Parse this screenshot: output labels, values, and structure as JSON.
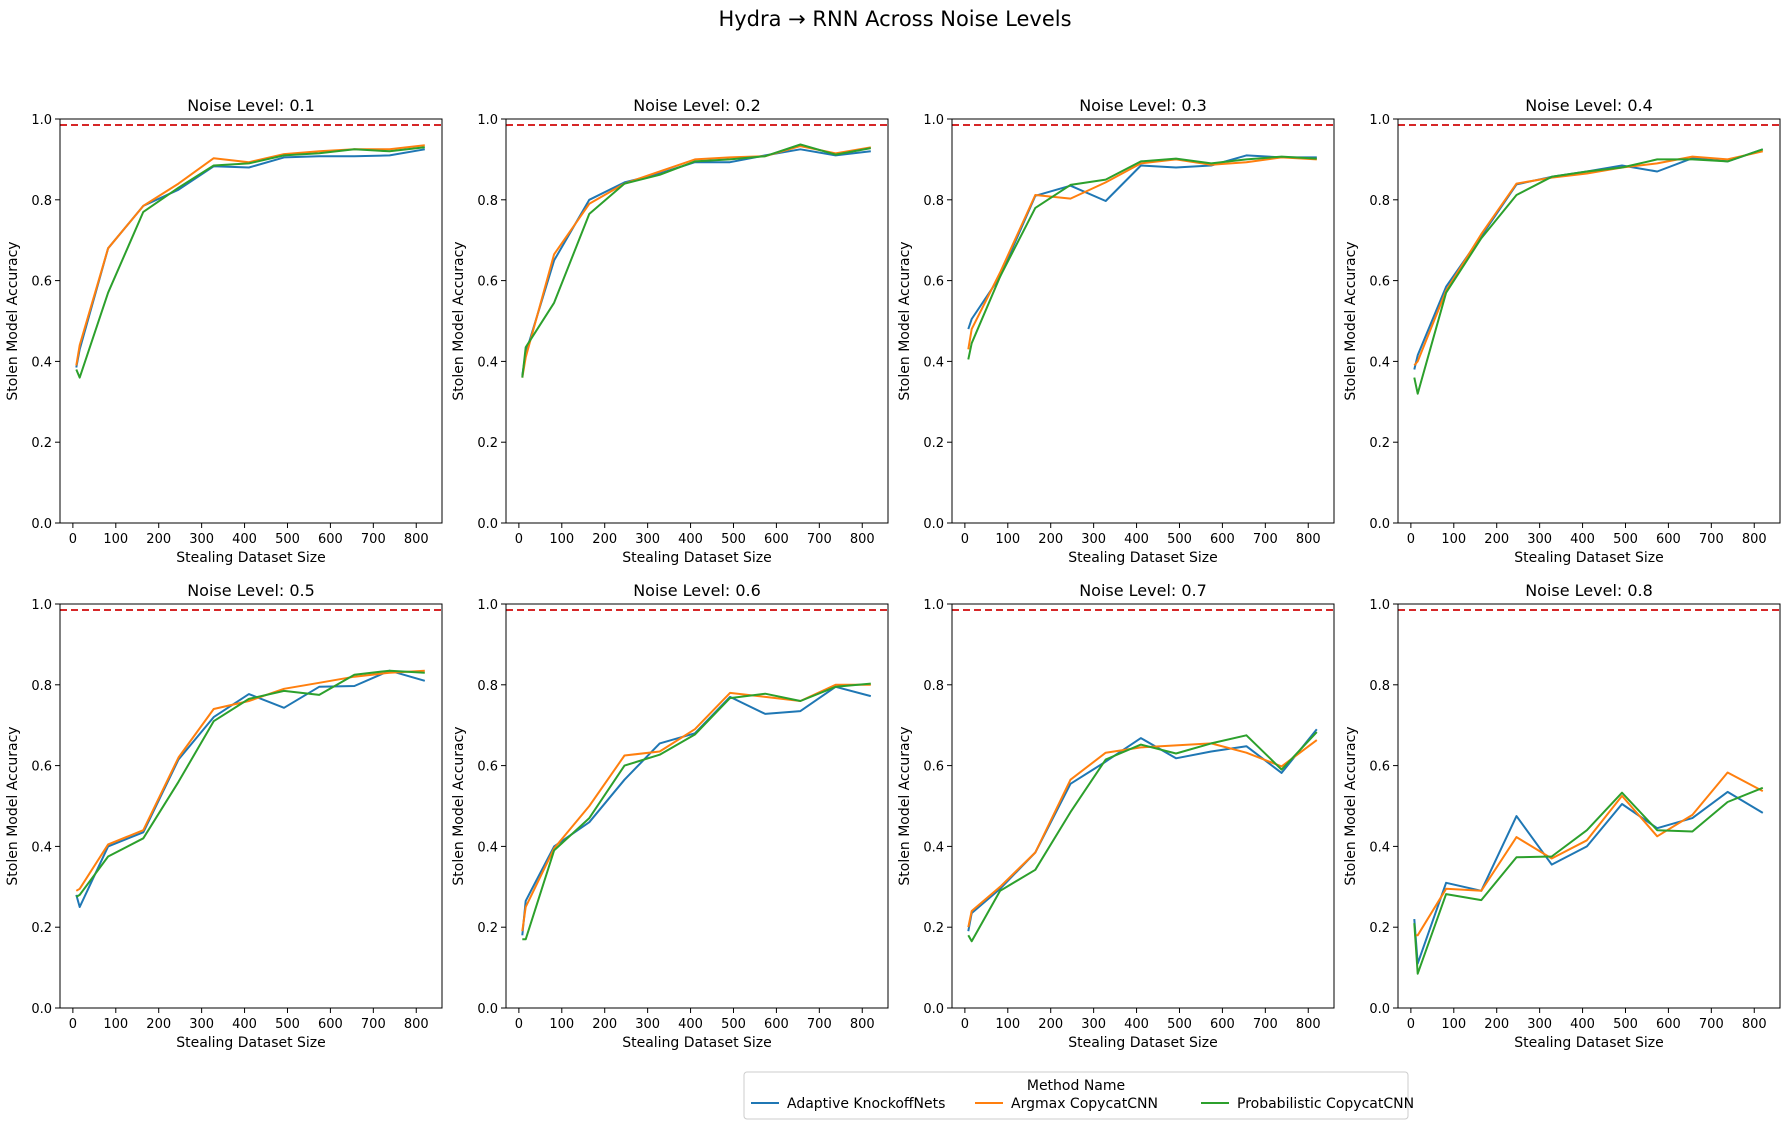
{
  "figure": {
    "suptitle": "Hydra → RNN Across Noise Levels",
    "xlabel": "Stealing Dataset Size",
    "ylabel": "Stolen Model Accuracy",
    "legend_title": "Method Name",
    "legend_placement": "bottom-center",
    "grid": false
  },
  "series_styles": [
    {
      "name": "Adaptive KnockoffNets",
      "color": "#1f77b4"
    },
    {
      "name": "Argmax CopycatCNN",
      "color": "#ff7f0e"
    },
    {
      "name": "Probabilistic CopycatCNN",
      "color": "#2ca02c"
    }
  ],
  "reference_line": {
    "y": 0.985,
    "color": "#d62728",
    "style": "dashed"
  },
  "chart_data": [
    {
      "type": "line",
      "title": "Noise Level: 0.1",
      "xlabel": "Stealing Dataset Size",
      "ylabel": "Stolen Model Accuracy",
      "xlim": [
        -30,
        860
      ],
      "ylim": [
        0,
        1
      ],
      "xticks": [
        0,
        100,
        200,
        300,
        400,
        500,
        600,
        700,
        800
      ],
      "yticks": [
        0.0,
        0.2,
        0.4,
        0.6,
        0.8,
        1.0
      ],
      "x": [
        8,
        16,
        82,
        164,
        246,
        328,
        410,
        492,
        574,
        656,
        738,
        820
      ],
      "series": [
        {
          "name": "Adaptive KnockoffNets",
          "values": [
            0.385,
            0.43,
            0.68,
            0.785,
            0.825,
            0.883,
            0.88,
            0.905,
            0.908,
            0.908,
            0.91,
            0.925
          ]
        },
        {
          "name": "Argmax CopycatCNN",
          "values": [
            0.39,
            0.44,
            0.68,
            0.785,
            0.84,
            0.903,
            0.893,
            0.913,
            0.92,
            0.925,
            0.925,
            0.935
          ]
        },
        {
          "name": "Probabilistic CopycatCNN",
          "values": [
            0.38,
            0.36,
            0.57,
            0.77,
            0.83,
            0.885,
            0.89,
            0.91,
            0.915,
            0.925,
            0.92,
            0.93
          ]
        }
      ]
    },
    {
      "type": "line",
      "title": "Noise Level: 0.2",
      "xlabel": "Stealing Dataset Size",
      "ylabel": "Stolen Model Accuracy",
      "xlim": [
        -30,
        860
      ],
      "ylim": [
        0,
        1
      ],
      "xticks": [
        0,
        100,
        200,
        300,
        400,
        500,
        600,
        700,
        800
      ],
      "yticks": [
        0.0,
        0.2,
        0.4,
        0.6,
        0.8,
        1.0
      ],
      "x": [
        8,
        16,
        82,
        164,
        246,
        328,
        410,
        492,
        574,
        656,
        738,
        820
      ],
      "series": [
        {
          "name": "Adaptive KnockoffNets",
          "values": [
            0.365,
            0.42,
            0.65,
            0.8,
            0.843,
            0.865,
            0.893,
            0.893,
            0.91,
            0.925,
            0.91,
            0.92
          ]
        },
        {
          "name": "Argmax CopycatCNN",
          "values": [
            0.36,
            0.41,
            0.665,
            0.79,
            0.84,
            0.87,
            0.9,
            0.905,
            0.908,
            0.933,
            0.915,
            0.93
          ]
        },
        {
          "name": "Probabilistic CopycatCNN",
          "values": [
            0.36,
            0.435,
            0.545,
            0.765,
            0.84,
            0.862,
            0.895,
            0.9,
            0.908,
            0.937,
            0.912,
            0.928
          ]
        }
      ]
    },
    {
      "type": "line",
      "title": "Noise Level: 0.3",
      "xlabel": "Stealing Dataset Size",
      "ylabel": "Stolen Model Accuracy",
      "xlim": [
        -30,
        860
      ],
      "ylim": [
        0,
        1
      ],
      "xticks": [
        0,
        100,
        200,
        300,
        400,
        500,
        600,
        700,
        800
      ],
      "yticks": [
        0.0,
        0.2,
        0.4,
        0.6,
        0.8,
        1.0
      ],
      "x": [
        8,
        16,
        82,
        164,
        246,
        328,
        410,
        492,
        574,
        656,
        738,
        820
      ],
      "series": [
        {
          "name": "Adaptive KnockoffNets",
          "values": [
            0.48,
            0.505,
            0.61,
            0.81,
            0.835,
            0.797,
            0.885,
            0.88,
            0.885,
            0.91,
            0.905,
            0.905
          ]
        },
        {
          "name": "Argmax CopycatCNN",
          "values": [
            0.43,
            0.48,
            0.62,
            0.812,
            0.803,
            0.843,
            0.89,
            0.9,
            0.887,
            0.893,
            0.905,
            0.9
          ]
        },
        {
          "name": "Probabilistic CopycatCNN",
          "values": [
            0.405,
            0.445,
            0.61,
            0.78,
            0.837,
            0.85,
            0.895,
            0.902,
            0.89,
            0.9,
            0.907,
            0.902
          ]
        }
      ]
    },
    {
      "type": "line",
      "title": "Noise Level: 0.4",
      "xlabel": "Stealing Dataset Size",
      "ylabel": "Stolen Model Accuracy",
      "xlim": [
        -30,
        860
      ],
      "ylim": [
        0,
        1
      ],
      "xticks": [
        0,
        100,
        200,
        300,
        400,
        500,
        600,
        700,
        800
      ],
      "yticks": [
        0.0,
        0.2,
        0.4,
        0.6,
        0.8,
        1.0
      ],
      "x": [
        8,
        16,
        82,
        164,
        246,
        328,
        410,
        492,
        574,
        656,
        738,
        820
      ],
      "series": [
        {
          "name": "Adaptive KnockoffNets",
          "values": [
            0.38,
            0.415,
            0.585,
            0.71,
            0.838,
            0.857,
            0.87,
            0.885,
            0.87,
            0.903,
            0.895,
            0.925
          ]
        },
        {
          "name": "Argmax CopycatCNN",
          "values": [
            0.39,
            0.4,
            0.575,
            0.715,
            0.84,
            0.855,
            0.865,
            0.88,
            0.89,
            0.907,
            0.9,
            0.92
          ]
        },
        {
          "name": "Probabilistic CopycatCNN",
          "values": [
            0.36,
            0.32,
            0.57,
            0.705,
            0.812,
            0.857,
            0.87,
            0.88,
            0.9,
            0.9,
            0.895,
            0.925
          ]
        }
      ]
    },
    {
      "type": "line",
      "title": "Noise Level: 0.5",
      "xlabel": "Stealing Dataset Size",
      "ylabel": "Stolen Model Accuracy",
      "xlim": [
        -30,
        860
      ],
      "ylim": [
        0,
        1
      ],
      "xticks": [
        0,
        100,
        200,
        300,
        400,
        500,
        600,
        700,
        800
      ],
      "yticks": [
        0.0,
        0.2,
        0.4,
        0.6,
        0.8,
        1.0
      ],
      "x": [
        8,
        16,
        82,
        164,
        246,
        328,
        410,
        492,
        574,
        656,
        738,
        820
      ],
      "series": [
        {
          "name": "Adaptive KnockoffNets",
          "values": [
            0.28,
            0.25,
            0.4,
            0.435,
            0.615,
            0.72,
            0.777,
            0.743,
            0.795,
            0.797,
            0.835,
            0.81
          ]
        },
        {
          "name": "Argmax CopycatCNN",
          "values": [
            0.29,
            0.295,
            0.405,
            0.44,
            0.62,
            0.74,
            0.76,
            0.79,
            0.805,
            0.82,
            0.83,
            0.835
          ]
        },
        {
          "name": "Probabilistic CopycatCNN",
          "values": [
            0.275,
            0.28,
            0.375,
            0.42,
            0.56,
            0.71,
            0.765,
            0.785,
            0.775,
            0.825,
            0.835,
            0.83
          ]
        }
      ]
    },
    {
      "type": "line",
      "title": "Noise Level: 0.6",
      "xlabel": "Stealing Dataset Size",
      "ylabel": "Stolen Model Accuracy",
      "xlim": [
        -30,
        860
      ],
      "ylim": [
        0,
        1
      ],
      "xticks": [
        0,
        100,
        200,
        300,
        400,
        500,
        600,
        700,
        800
      ],
      "yticks": [
        0.0,
        0.2,
        0.4,
        0.6,
        0.8,
        1.0
      ],
      "x": [
        8,
        16,
        82,
        164,
        246,
        328,
        410,
        492,
        574,
        656,
        738,
        820
      ],
      "series": [
        {
          "name": "Adaptive KnockoffNets",
          "values": [
            0.18,
            0.265,
            0.4,
            0.46,
            0.565,
            0.655,
            0.68,
            0.77,
            0.728,
            0.735,
            0.795,
            0.772
          ]
        },
        {
          "name": "Argmax CopycatCNN",
          "values": [
            0.19,
            0.25,
            0.395,
            0.5,
            0.625,
            0.635,
            0.69,
            0.78,
            0.77,
            0.76,
            0.8,
            0.8
          ]
        },
        {
          "name": "Probabilistic CopycatCNN",
          "values": [
            0.17,
            0.17,
            0.39,
            0.47,
            0.6,
            0.627,
            0.677,
            0.767,
            0.778,
            0.76,
            0.795,
            0.803
          ]
        }
      ]
    },
    {
      "type": "line",
      "title": "Noise Level: 0.7",
      "xlabel": "Stealing Dataset Size",
      "ylabel": "Stolen Model Accuracy",
      "xlim": [
        -30,
        860
      ],
      "ylim": [
        0,
        1
      ],
      "xticks": [
        0,
        100,
        200,
        300,
        400,
        500,
        600,
        700,
        800
      ],
      "yticks": [
        0.0,
        0.2,
        0.4,
        0.6,
        0.8,
        1.0
      ],
      "x": [
        8,
        16,
        82,
        164,
        246,
        328,
        410,
        492,
        574,
        656,
        738,
        820
      ],
      "series": [
        {
          "name": "Adaptive KnockoffNets",
          "values": [
            0.19,
            0.235,
            0.295,
            0.385,
            0.555,
            0.61,
            0.668,
            0.618,
            0.635,
            0.648,
            0.582,
            0.69
          ]
        },
        {
          "name": "Argmax CopycatCNN",
          "values": [
            0.2,
            0.24,
            0.3,
            0.385,
            0.565,
            0.632,
            0.645,
            0.65,
            0.655,
            0.632,
            0.598,
            0.663
          ]
        },
        {
          "name": "Probabilistic CopycatCNN",
          "values": [
            0.18,
            0.165,
            0.29,
            0.342,
            0.485,
            0.615,
            0.652,
            0.63,
            0.655,
            0.675,
            0.59,
            0.683
          ]
        }
      ]
    },
    {
      "type": "line",
      "title": "Noise Level: 0.8",
      "xlabel": "Stealing Dataset Size",
      "ylabel": "Stolen Model Accuracy",
      "xlim": [
        -30,
        860
      ],
      "ylim": [
        0,
        1
      ],
      "xticks": [
        0,
        100,
        200,
        300,
        400,
        500,
        600,
        700,
        800
      ],
      "yticks": [
        0.0,
        0.2,
        0.4,
        0.6,
        0.8,
        1.0
      ],
      "x": [
        8,
        16,
        82,
        164,
        246,
        328,
        410,
        492,
        574,
        656,
        738,
        820
      ],
      "series": [
        {
          "name": "Adaptive KnockoffNets",
          "values": [
            0.22,
            0.11,
            0.31,
            0.29,
            0.475,
            0.355,
            0.4,
            0.505,
            0.445,
            0.47,
            0.535,
            0.483
          ]
        },
        {
          "name": "Argmax CopycatCNN",
          "values": [
            0.18,
            0.18,
            0.295,
            0.29,
            0.423,
            0.37,
            0.415,
            0.525,
            0.425,
            0.478,
            0.583,
            0.537
          ]
        },
        {
          "name": "Probabilistic CopycatCNN",
          "values": [
            0.21,
            0.085,
            0.282,
            0.267,
            0.373,
            0.375,
            0.44,
            0.533,
            0.44,
            0.437,
            0.51,
            0.545
          ]
        }
      ]
    }
  ]
}
